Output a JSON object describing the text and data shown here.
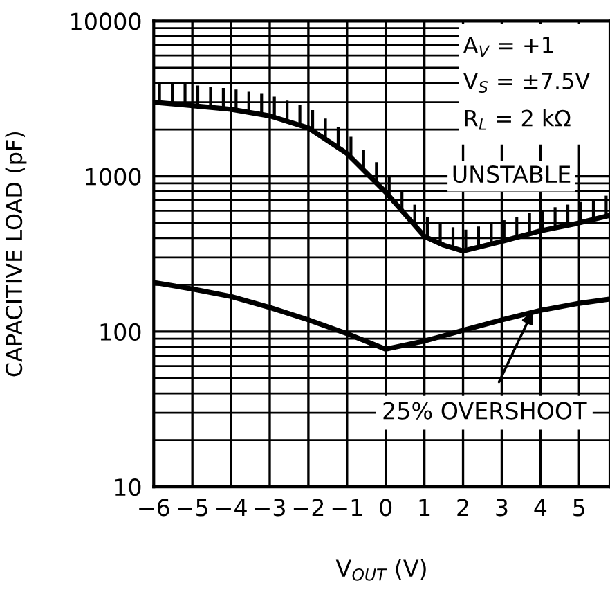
{
  "chart_data": {
    "type": "line",
    "xlabel": "V$_{OUT}$ (V)",
    "ylabel": "CAPACITIVE LOAD (pF)",
    "x": [
      -6,
      -5,
      -4,
      -3,
      -2,
      -1,
      0,
      1,
      1.5,
      2,
      3,
      4,
      5,
      5.8
    ],
    "series": [
      {
        "color": "#000000",
        "values": [
          3000,
          2850,
          2700,
          2450,
          2050,
          1400,
          790,
          410,
          360,
          330,
          380,
          445,
          500,
          560
        ]
      },
      {
        "color": "#000000",
        "values": [
          207,
          188,
          168,
          143,
          119,
          97,
          77,
          87,
          94,
          102,
          119,
          137,
          152,
          162
        ]
      }
    ],
    "log": "y",
    "xlim": [
      -6,
      5.8
    ],
    "xticks": [
      -6,
      -5,
      -4,
      -3,
      -2,
      -1,
      0,
      1,
      2,
      3,
      4,
      5
    ],
    "ylim": [
      10,
      10000
    ],
    "yticks": [
      10,
      100,
      1000,
      10000
    ],
    "grid": true,
    "marker": "none",
    "line_style": "solid",
    "annotations": [
      "A$_{V}$ = +1",
      "V$_{S}$ = ±7.5V",
      "R$_{L}$ = 2 kΩ",
      "UNSTABLE",
      {
        "text": "25% OVERSHOOT",
        "x": 3.8,
        "y": 135
      }
    ]
  }
}
